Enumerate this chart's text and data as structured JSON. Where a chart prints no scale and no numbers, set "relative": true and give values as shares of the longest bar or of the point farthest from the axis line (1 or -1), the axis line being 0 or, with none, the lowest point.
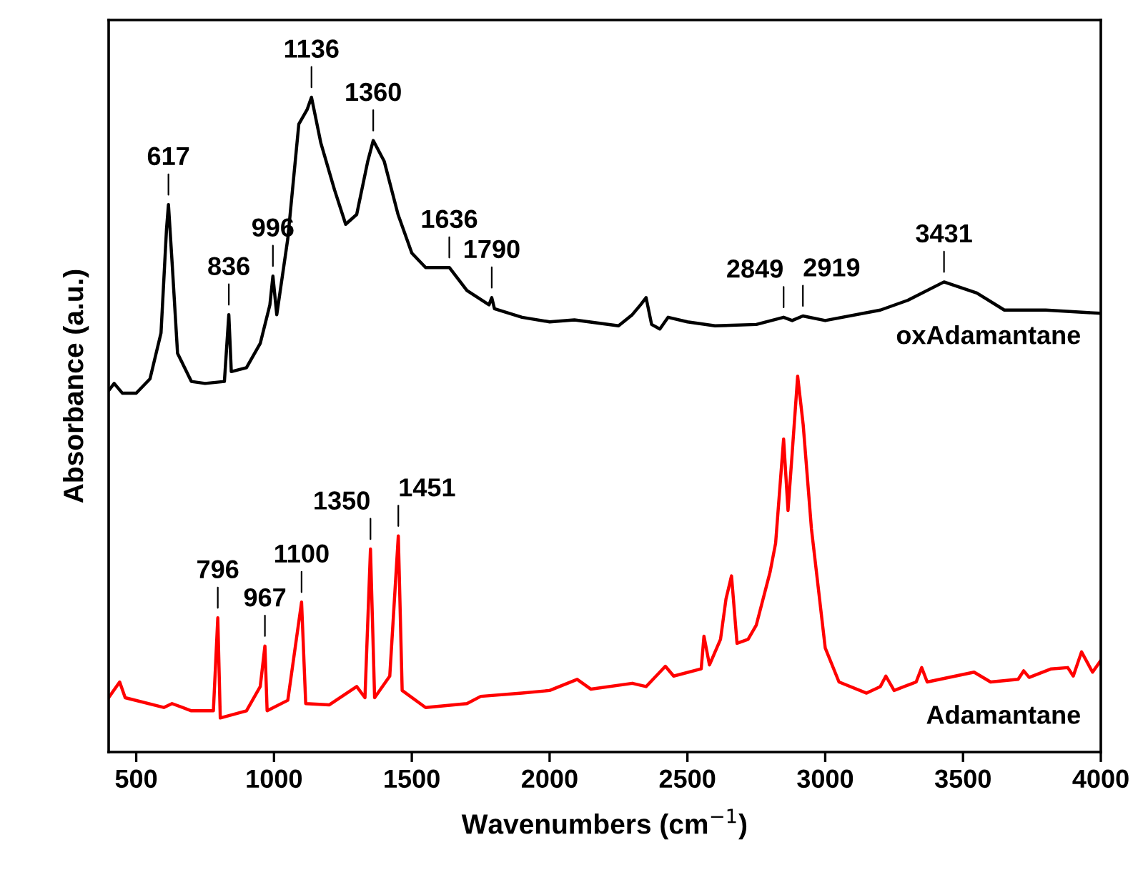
{
  "chart_data": {
    "type": "line",
    "relative": true,
    "xlabel": "Wavenumbers (cm$^{−1}$)",
    "ylabel": "Absorbance (a.u.)",
    "xlim": [
      400,
      4000
    ],
    "xticks": [
      500,
      1000,
      1500,
      2000,
      2500,
      3000,
      3500,
      4000
    ],
    "tick_labels": "x",
    "grid": false,
    "legend": false,
    "marker": "none",
    "line_style": "solid",
    "series": [
      {
        "name": "oxAdamantane",
        "color": "#000000",
        "x": [
          400,
          420,
          450,
          500,
          550,
          590,
          610,
          617,
          630,
          650,
          700,
          750,
          820,
          836,
          845,
          900,
          950,
          985,
          996,
          1010,
          1050,
          1090,
          1120,
          1136,
          1170,
          1220,
          1260,
          1300,
          1340,
          1360,
          1400,
          1450,
          1500,
          1550,
          1636,
          1700,
          1780,
          1790,
          1800,
          1900,
          2000,
          2090,
          2250,
          2300,
          2330,
          2350,
          2370,
          2400,
          2430,
          2500,
          2600,
          2750,
          2849,
          2880,
          2919,
          3000,
          3200,
          3300,
          3431,
          3550,
          3650,
          3800,
          4000
        ],
        "values": [
          0.552,
          0.563,
          0.548,
          0.548,
          0.57,
          0.64,
          0.799,
          0.836,
          0.749,
          0.609,
          0.566,
          0.563,
          0.566,
          0.668,
          0.581,
          0.587,
          0.624,
          0.683,
          0.727,
          0.668,
          0.784,
          0.959,
          0.981,
          1.0,
          0.93,
          0.858,
          0.806,
          0.821,
          0.902,
          0.934,
          0.902,
          0.821,
          0.762,
          0.74,
          0.74,
          0.705,
          0.683,
          0.694,
          0.677,
          0.664,
          0.657,
          0.66,
          0.651,
          0.668,
          0.683,
          0.694,
          0.653,
          0.646,
          0.664,
          0.657,
          0.651,
          0.653,
          0.664,
          0.659,
          0.666,
          0.659,
          0.675,
          0.69,
          0.718,
          0.701,
          0.675,
          0.675,
          0.67
        ]
      },
      {
        "name": "Adamantane",
        "color": "#ff0000",
        "x": [
          400,
          440,
          460,
          600,
          630,
          700,
          780,
          796,
          805,
          900,
          950,
          967,
          975,
          1050,
          1100,
          1115,
          1200,
          1300,
          1330,
          1350,
          1365,
          1420,
          1451,
          1465,
          1550,
          1700,
          1750,
          1900,
          2000,
          2100,
          2150,
          2300,
          2350,
          2420,
          2450,
          2550,
          2560,
          2580,
          2620,
          2640,
          2660,
          2680,
          2720,
          2750,
          2800,
          2820,
          2849,
          2865,
          2880,
          2900,
          2920,
          2950,
          3000,
          3050,
          3150,
          3200,
          3220,
          3250,
          3330,
          3350,
          3370,
          3540,
          3600,
          3700,
          3720,
          3740,
          3820,
          3880,
          3900,
          3930,
          3970,
          4000
        ],
        "values": [
          0.083,
          0.107,
          0.083,
          0.068,
          0.074,
          0.063,
          0.063,
          0.205,
          0.052,
          0.063,
          0.1,
          0.162,
          0.063,
          0.079,
          0.229,
          0.074,
          0.072,
          0.1,
          0.083,
          0.31,
          0.083,
          0.116,
          0.33,
          0.094,
          0.068,
          0.074,
          0.085,
          0.09,
          0.094,
          0.111,
          0.096,
          0.105,
          0.1,
          0.131,
          0.116,
          0.127,
          0.177,
          0.133,
          0.172,
          0.234,
          0.269,
          0.166,
          0.172,
          0.194,
          0.275,
          0.319,
          0.478,
          0.369,
          0.456,
          0.574,
          0.5,
          0.341,
          0.159,
          0.107,
          0.09,
          0.1,
          0.116,
          0.094,
          0.107,
          0.129,
          0.107,
          0.122,
          0.107,
          0.111,
          0.124,
          0.114,
          0.127,
          0.129,
          0.116,
          0.153,
          0.122,
          0.14
        ]
      }
    ],
    "annotations": [
      {
        "text": "617",
        "x": 617,
        "y": 0.836
      },
      {
        "text": "836",
        "x": 836,
        "y": 0.668
      },
      {
        "text": "996",
        "x": 996,
        "y": 0.727
      },
      {
        "text": "1136",
        "x": 1136,
        "y": 1.0
      },
      {
        "text": "1360",
        "x": 1360,
        "y": 0.934
      },
      {
        "text": "1636",
        "x": 1636,
        "y": 0.74
      },
      {
        "text": "1790",
        "x": 1790,
        "y": 0.694
      },
      {
        "text": "2849",
        "x": 2849,
        "y": 0.664
      },
      {
        "text": "2919",
        "x": 2919,
        "y": 0.666
      },
      {
        "text": "3431",
        "x": 3431,
        "y": 0.718
      },
      {
        "text": "796",
        "x": 796,
        "y": 0.205
      },
      {
        "text": "967",
        "x": 967,
        "y": 0.162
      },
      {
        "text": "1100",
        "x": 1100,
        "y": 0.229
      },
      {
        "text": "1350",
        "x": 1350,
        "y": 0.31
      },
      {
        "text": "1451",
        "x": 1451,
        "y": 0.33
      }
    ]
  }
}
